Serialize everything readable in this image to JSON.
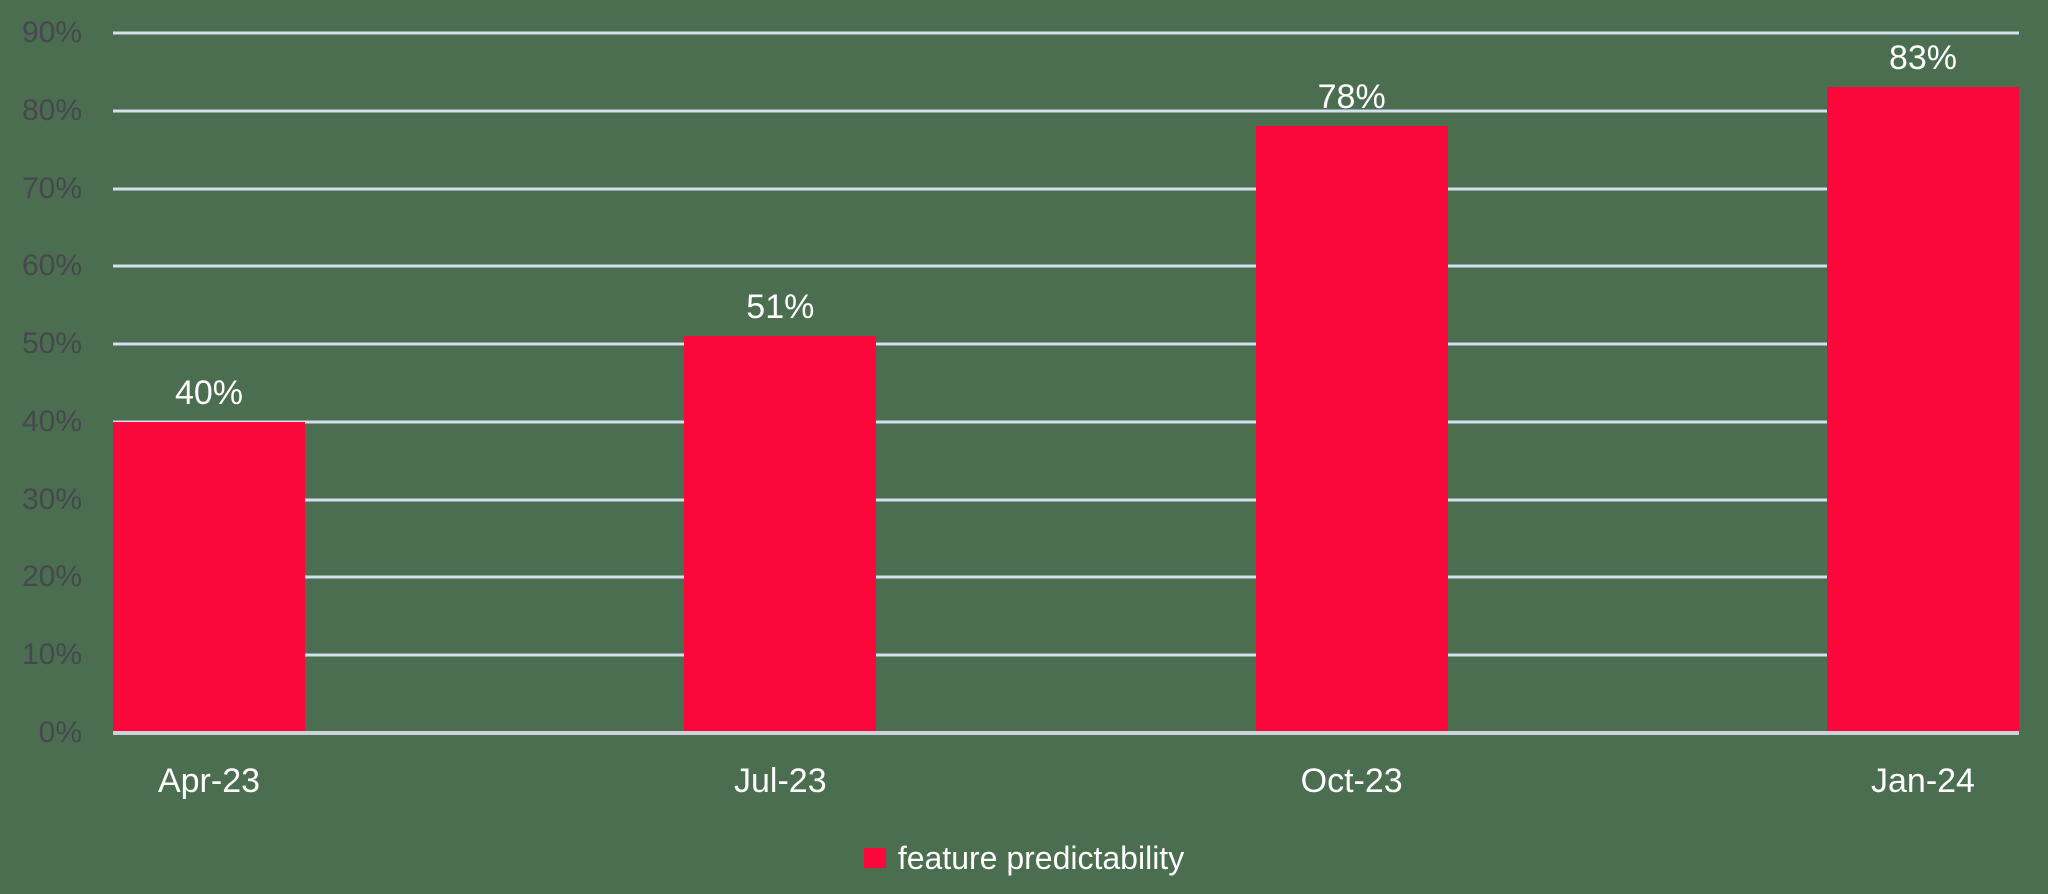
{
  "chart_data": {
    "type": "bar",
    "title": "",
    "categories": [
      "Apr-23",
      "Jul-23",
      "Oct-23",
      "Jan-24"
    ],
    "series": [
      {
        "name": "feature predictability",
        "values": [
          40,
          51,
          78,
          83
        ]
      }
    ],
    "data_labels": [
      "40%",
      "51%",
      "78%",
      "83%"
    ],
    "y_ticks": [
      {
        "value": 0,
        "label": "0%"
      },
      {
        "value": 10,
        "label": "10%"
      },
      {
        "value": 20,
        "label": "20%"
      },
      {
        "value": 30,
        "label": "30%"
      },
      {
        "value": 40,
        "label": "40%"
      },
      {
        "value": 50,
        "label": "50%"
      },
      {
        "value": 60,
        "label": "60%"
      },
      {
        "value": 70,
        "label": "70%"
      },
      {
        "value": 80,
        "label": "80%"
      },
      {
        "value": 90,
        "label": "90%"
      }
    ],
    "ylim": [
      0,
      90
    ],
    "xlabel": "",
    "ylabel": "",
    "grid": true,
    "legend_position": "bottom"
  },
  "legend": {
    "label": "feature predictability"
  },
  "colors": {
    "background": "#4a6e4f",
    "bar": "#fa083c",
    "gridline": "#d3dfee",
    "axis_line": "#ccd2da",
    "y_tick_text": "#47484f",
    "x_tick_text": "#ffffff",
    "data_label_text": "#ffffff",
    "legend_text": "#ffffff"
  }
}
